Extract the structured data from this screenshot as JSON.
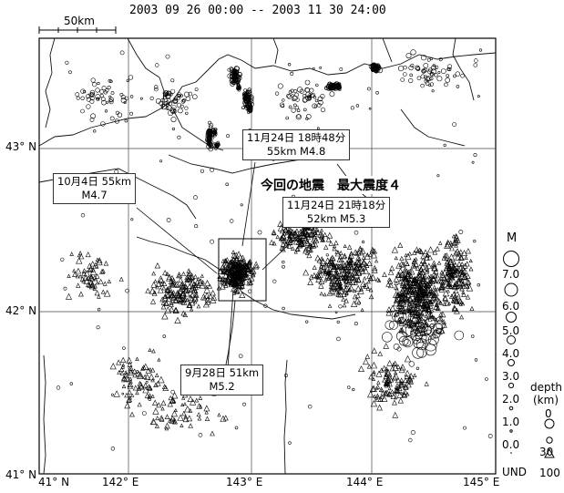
{
  "header": {
    "date_range": "2003 09 26 00:00 -- 2003 11 30 24:00",
    "scale_label": "50km"
  },
  "map": {
    "lat_labels": [
      "43° N",
      "42° N",
      "41° N"
    ],
    "lon_labels": [
      "41° N",
      "142° E",
      "143° E",
      "144° E",
      "145° E"
    ],
    "headline": "今回の地震　最大震度４",
    "annotations": [
      {
        "id": "oct4",
        "line1": "10月4日  55km",
        "line2": "M4.7"
      },
      {
        "id": "nov24a",
        "line1": "11月24日  18時48分",
        "line2": "55km   M4.8"
      },
      {
        "id": "nov24b",
        "line1": "11月24日  21時18分",
        "line2": "52km   M5.3"
      },
      {
        "id": "sep28",
        "line1": "9月28日  51km",
        "line2": "M5.2"
      }
    ]
  },
  "legend": {
    "magnitude_title": "M",
    "magnitudes": [
      "7.0",
      "6.0",
      "5.0",
      "4.0",
      "3.0",
      "2.0",
      "1.0",
      "0.0",
      "UND"
    ],
    "depth_title_1": "depth",
    "depth_title_2": "(km)",
    "depths": [
      "0",
      "30",
      "100"
    ]
  },
  "colors": {
    "ink": "#000000",
    "grid": "#333333",
    "background": "#ffffff"
  },
  "icons": {
    "shallow_event": "circle-icon",
    "deep_event": "triangle-icon"
  }
}
